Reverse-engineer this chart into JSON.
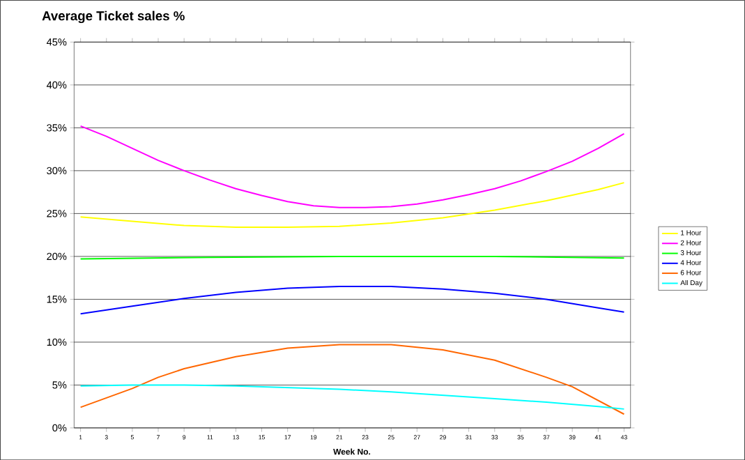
{
  "chart_data": {
    "type": "line",
    "title": "Average Ticket sales %",
    "xlabel": "Week No.",
    "xlim": [
      0.5,
      43.5
    ],
    "xticks": [
      1,
      3,
      5,
      7,
      9,
      11,
      13,
      15,
      17,
      19,
      21,
      23,
      25,
      27,
      29,
      31,
      33,
      35,
      37,
      39,
      41,
      43
    ],
    "ylim": [
      0,
      45
    ],
    "yticks": [
      {
        "value": 0,
        "label": "0%"
      },
      {
        "value": 5,
        "label": "5%"
      },
      {
        "value": 10,
        "label": "10%"
      },
      {
        "value": 15,
        "label": "15%"
      },
      {
        "value": 20,
        "label": "20%"
      },
      {
        "value": 25,
        "label": "25%"
      },
      {
        "value": 30,
        "label": "30%"
      },
      {
        "value": 35,
        "label": "35%"
      },
      {
        "value": 40,
        "label": "40%"
      },
      {
        "value": 45,
        "label": "45%"
      }
    ],
    "grid": "y",
    "legend": "right",
    "marker": "none",
    "line_style": "solid",
    "series": [
      {
        "name": "1 Hour",
        "color": "#ffff00",
        "x": [
          1,
          5,
          9,
          13,
          17,
          21,
          25,
          29,
          33,
          37,
          41,
          43
        ],
        "values": [
          24.6,
          24.1,
          23.6,
          23.4,
          23.4,
          23.5,
          23.9,
          24.5,
          25.4,
          26.5,
          27.8,
          28.6
        ]
      },
      {
        "name": "2 Hour",
        "color": "#ff00ff",
        "x": [
          1,
          3,
          5,
          7,
          9,
          11,
          13,
          15,
          17,
          19,
          21,
          23,
          25,
          27,
          29,
          31,
          33,
          35,
          37,
          39,
          41,
          43
        ],
        "values": [
          35.2,
          34.0,
          32.6,
          31.2,
          30.0,
          28.9,
          27.9,
          27.1,
          26.4,
          25.9,
          25.7,
          25.7,
          25.8,
          26.1,
          26.6,
          27.2,
          27.9,
          28.8,
          29.9,
          31.1,
          32.6,
          34.3
        ]
      },
      {
        "name": "3 Hour",
        "color": "#00ff00",
        "x": [
          1,
          11,
          21,
          33,
          43
        ],
        "values": [
          19.7,
          19.9,
          20.0,
          20.0,
          19.8
        ]
      },
      {
        "name": "4 Hour",
        "color": "#0000ff",
        "x": [
          1,
          5,
          9,
          13,
          17,
          21,
          25,
          29,
          33,
          37,
          41,
          43
        ],
        "values": [
          13.3,
          14.2,
          15.1,
          15.8,
          16.3,
          16.5,
          16.5,
          16.2,
          15.7,
          15.0,
          14.0,
          13.5
        ]
      },
      {
        "name": "6 Hour",
        "color": "#ff6600",
        "x": [
          1,
          3,
          5,
          7,
          9,
          13,
          17,
          21,
          25,
          29,
          33,
          37,
          39,
          41,
          43
        ],
        "values": [
          2.4,
          3.5,
          4.6,
          5.9,
          6.9,
          8.3,
          9.3,
          9.7,
          9.7,
          9.1,
          7.9,
          5.9,
          4.8,
          3.2,
          1.6
        ]
      },
      {
        "name": "All Day",
        "color": "#00ffff",
        "x": [
          1,
          5,
          9,
          13,
          17,
          21,
          25,
          29,
          33,
          37,
          41,
          43
        ],
        "values": [
          4.9,
          5.0,
          5.0,
          4.9,
          4.7,
          4.5,
          4.2,
          3.8,
          3.4,
          3.0,
          2.5,
          2.2
        ]
      }
    ]
  }
}
